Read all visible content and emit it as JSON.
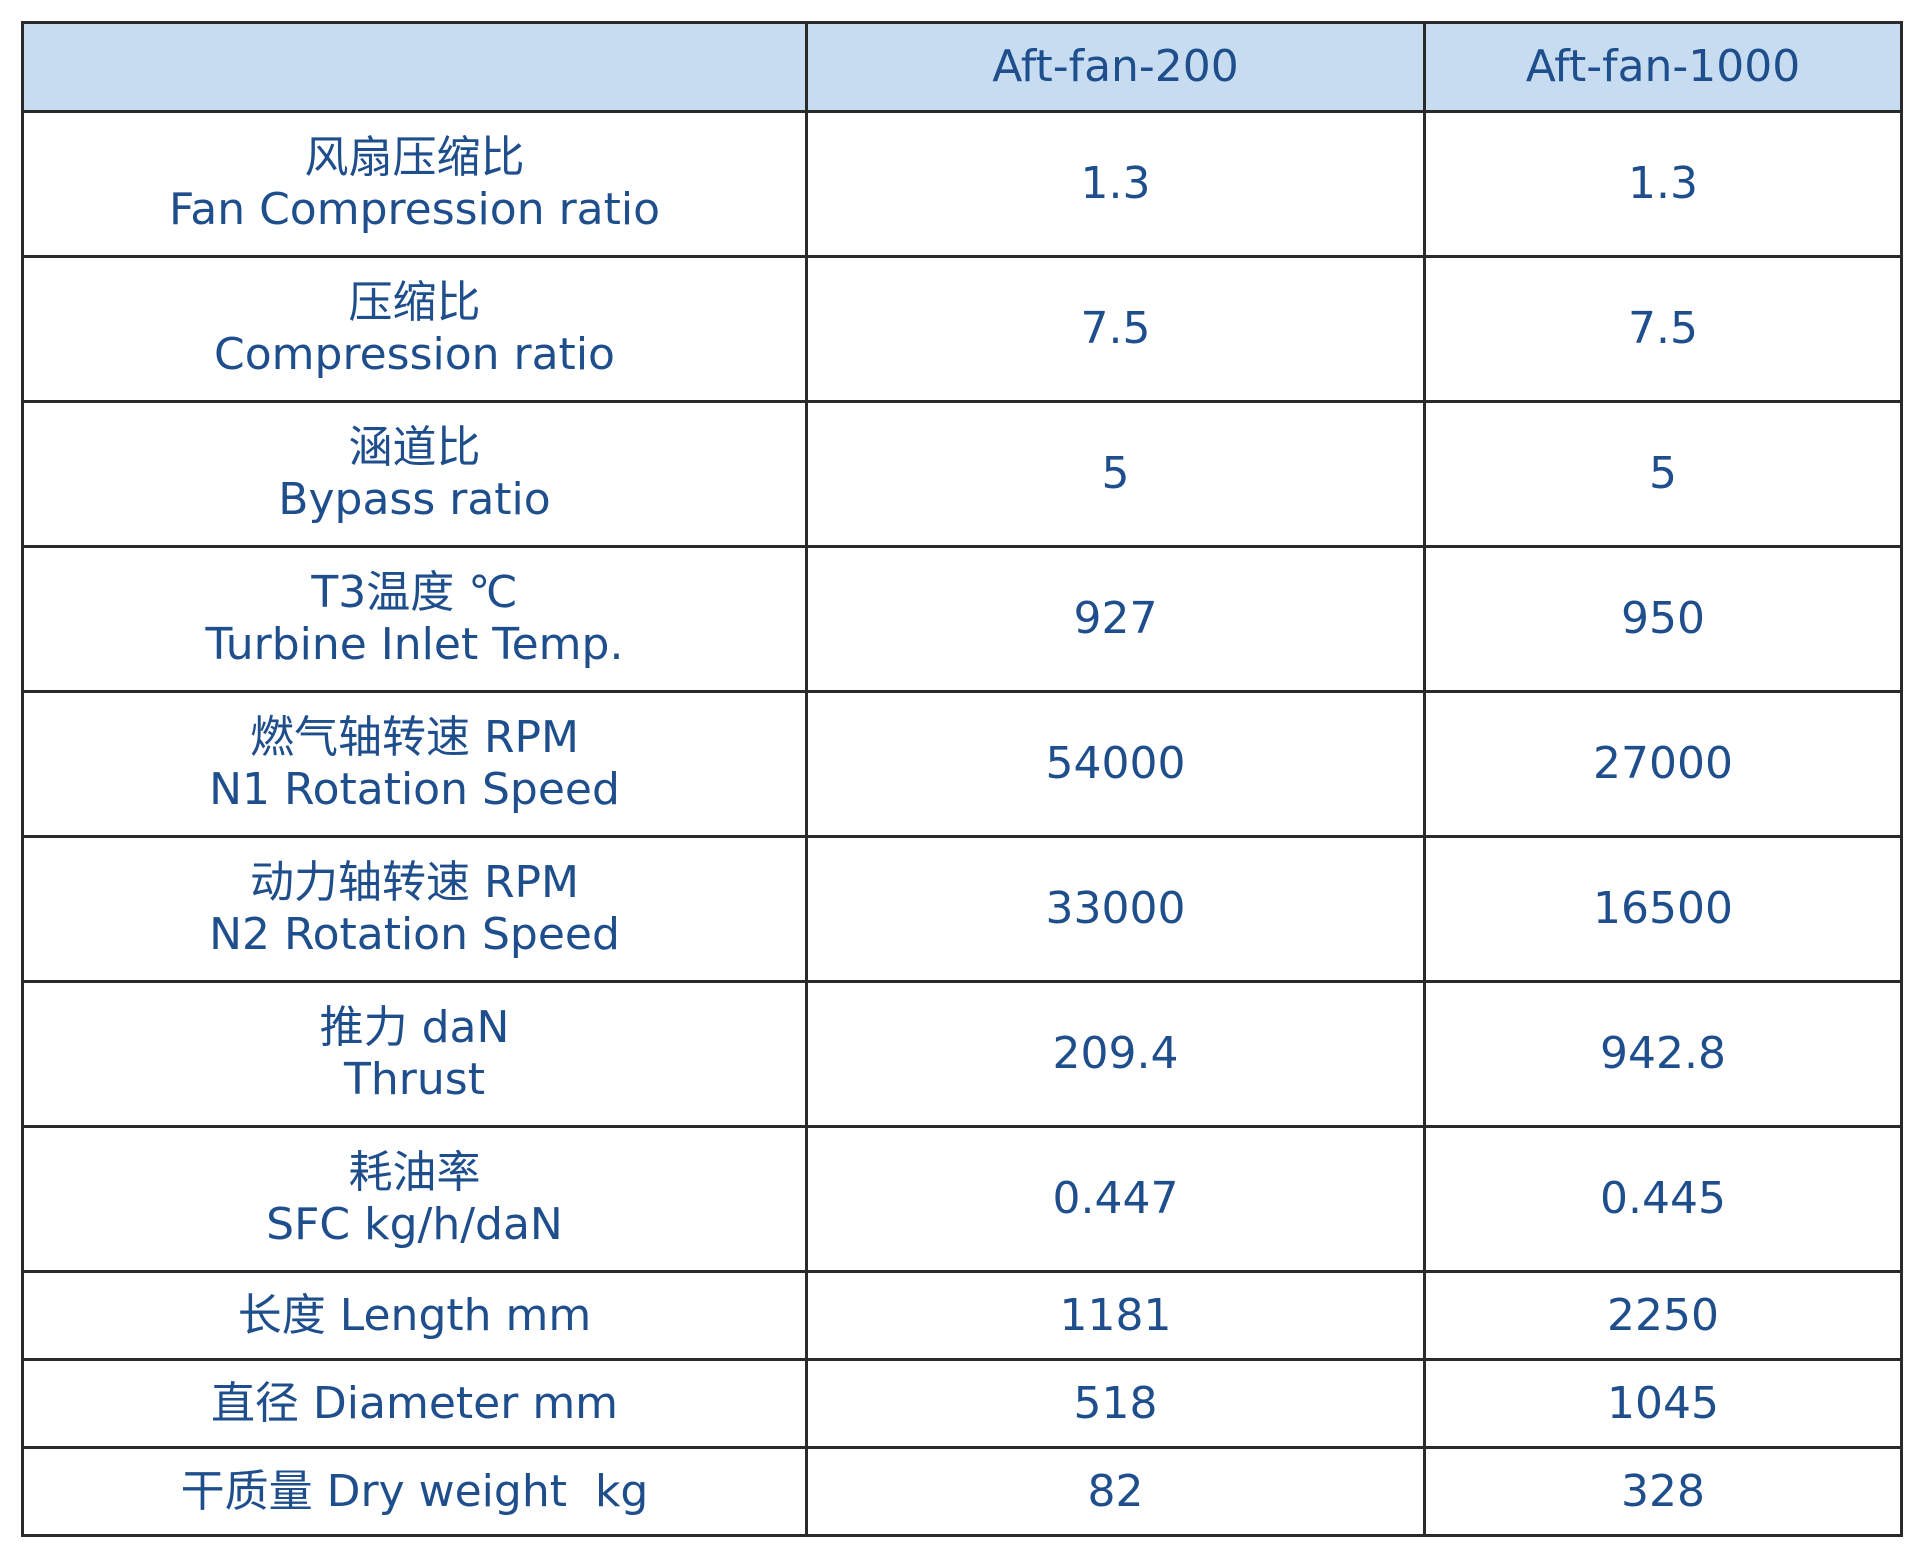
{
  "table": {
    "header": {
      "label": "",
      "models": [
        "Aft-fan-200",
        "Aft-fan-1000"
      ]
    },
    "rows": [
      {
        "zh": "风扇压缩比",
        "en": "Fan Compression ratio",
        "v1": "1.3",
        "v2": "1.3"
      },
      {
        "zh": "压缩比",
        "en": "Compression ratio",
        "v1": "7.5",
        "v2": "7.5"
      },
      {
        "zh": "涵道比",
        "en": "Bypass ratio",
        "v1": "5",
        "v2": "5"
      },
      {
        "zh": "T3温度 ℃",
        "en": "Turbine Inlet Temp.",
        "v1": "927",
        "v2": "950"
      },
      {
        "zh": "燃气轴转速 RPM",
        "en": "N1 Rotation Speed",
        "v1": "54000",
        "v2": "27000"
      },
      {
        "zh": "动力轴转速 RPM",
        "en": "N2 Rotation Speed",
        "v1": "33000",
        "v2": "16500"
      },
      {
        "zh": "推力 daN",
        "en": "Thrust",
        "v1": "209.4",
        "v2": "942.8"
      },
      {
        "zh": "耗油率",
        "en": "SFC kg/h/daN",
        "v1": "0.447",
        "v2": "0.445"
      },
      {
        "label": "长度 Length mm",
        "v1": "1181",
        "v2": "2250"
      },
      {
        "label": "直径 Diameter mm",
        "v1": "518",
        "v2": "1045"
      },
      {
        "label": "干质量 Dry weight  kg",
        "v1": "82",
        "v2": "328"
      }
    ]
  }
}
